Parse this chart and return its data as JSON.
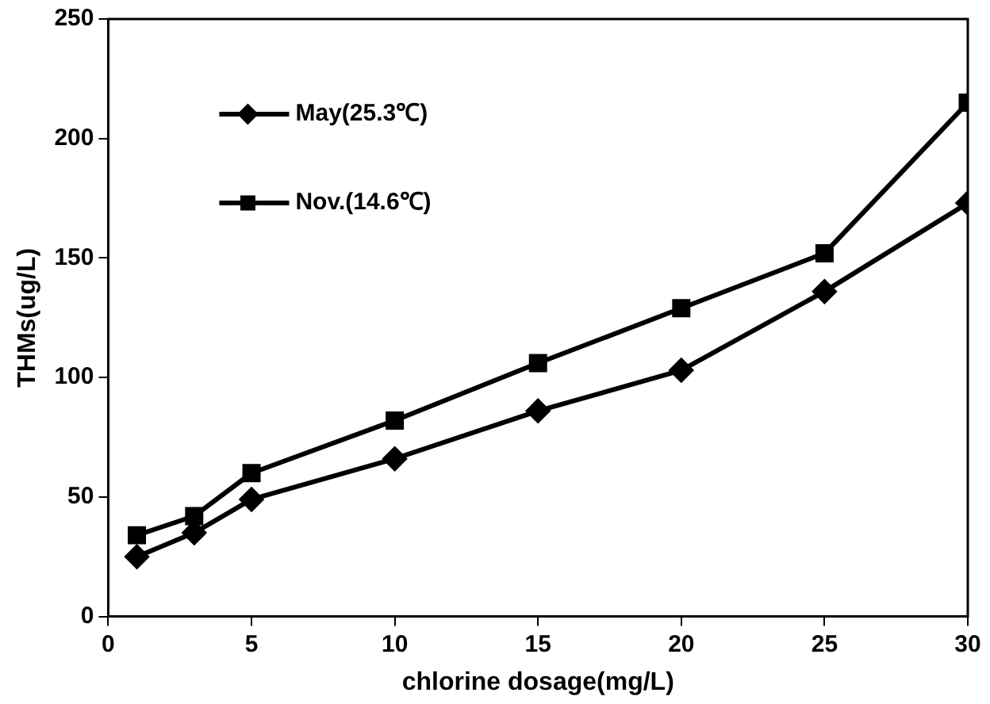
{
  "chart_data": {
    "type": "line",
    "xlabel": "chlorine dosage(mg/L)",
    "ylabel": "THMs(ug/L)",
    "x": [
      1,
      3,
      5,
      10,
      15,
      20,
      25,
      30
    ],
    "series": [
      {
        "name": "May(25.3℃)",
        "color": "#000000",
        "marker": "diamond",
        "values": [
          25,
          35,
          49,
          66,
          86,
          103,
          136,
          173
        ]
      },
      {
        "name": "Nov.(14.6℃)",
        "color": "#000000",
        "marker": "square",
        "values": [
          34,
          42,
          60,
          82,
          106,
          129,
          152,
          215
        ]
      }
    ],
    "xlim": [
      0,
      30
    ],
    "xticks": [
      0,
      5,
      10,
      15,
      20,
      25,
      30
    ],
    "ylim": [
      0,
      250
    ],
    "yticks": [
      0,
      50,
      100,
      150,
      200,
      250
    ],
    "grid": false,
    "legend": "top left",
    "line_style": "solid"
  }
}
